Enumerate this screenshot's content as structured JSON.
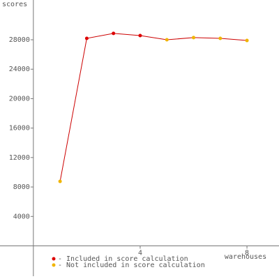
{
  "chart_data": {
    "type": "line",
    "y_label": "scores",
    "x_label": "warehouses",
    "x": [
      1,
      2,
      3,
      4,
      5,
      6,
      7,
      8
    ],
    "values": [
      8760,
      28190,
      28860,
      28570,
      28000,
      28290,
      28190,
      27900
    ],
    "line_color": "#cc0000",
    "included": [
      false,
      true,
      true,
      true,
      false,
      false,
      false,
      false
    ],
    "legend": [
      {
        "label": "- Included in score calculation",
        "color": "#dd0000"
      },
      {
        "label": "- Not included in score calculation",
        "color": "#f0b400"
      }
    ],
    "xlim": [
      -1.25,
      9.2
    ],
    "ylim": [
      -4500,
      33400
    ],
    "xticks": [
      4,
      8
    ],
    "yticks": [
      4000,
      8000,
      12000,
      16000,
      20000,
      24000,
      28000
    ]
  }
}
